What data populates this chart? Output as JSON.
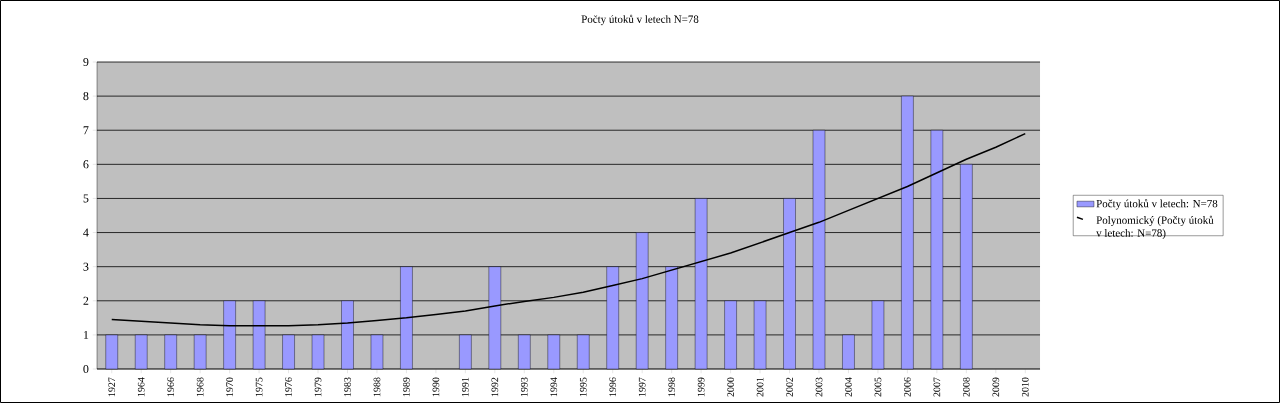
{
  "chart_data": {
    "type": "bar",
    "title": "Počty útoků v letech N=78",
    "categories": [
      "1927",
      "1964",
      "1966",
      "1968",
      "1970",
      "1975",
      "1976",
      "1979",
      "1983",
      "1988",
      "1989",
      "1990",
      "1991",
      "1992",
      "1993",
      "1994",
      "1995",
      "1996",
      "1997",
      "1998",
      "1999",
      "2000",
      "2001",
      "2002",
      "2003",
      "2004",
      "2005",
      "2006",
      "2007",
      "2008",
      "2009",
      "2010"
    ],
    "series": [
      {
        "name": "Počty útoků v letech: N=78",
        "color": "#9999ff",
        "values": [
          1,
          1,
          1,
          1,
          2,
          2,
          1,
          1,
          2,
          1,
          3,
          null,
          1,
          3,
          1,
          1,
          1,
          3,
          4,
          3,
          5,
          2,
          2,
          5,
          7,
          1,
          2,
          8,
          7,
          6,
          null,
          null
        ]
      },
      {
        "name": "Polynomický (Počty útoků v letech: N=78)",
        "type": "line",
        "color": "#000000",
        "values": [
          1.45,
          1.4,
          1.35,
          1.3,
          1.27,
          1.27,
          1.27,
          1.3,
          1.35,
          1.42,
          1.5,
          1.6,
          1.7,
          1.85,
          1.98,
          2.1,
          2.25,
          2.45,
          2.65,
          2.9,
          3.15,
          3.4,
          3.7,
          4.0,
          4.3,
          4.65,
          5.0,
          5.35,
          5.75,
          6.15,
          6.5,
          6.9
        ]
      }
    ],
    "ylim": [
      0,
      9
    ],
    "yticks": [
      0,
      1,
      2,
      3,
      4,
      5,
      6,
      7,
      8,
      9
    ],
    "grid": "y",
    "legend": "right",
    "marker": "none",
    "line_style": "solid"
  }
}
